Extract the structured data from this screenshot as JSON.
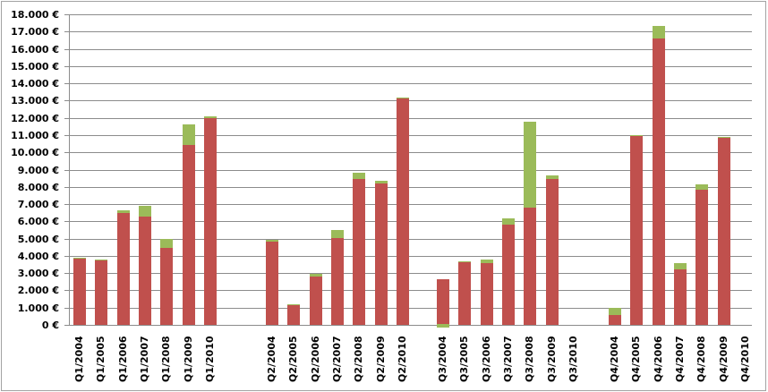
{
  "chart_data": {
    "type": "bar",
    "stacked": true,
    "title": "",
    "legend": "none",
    "grid": true,
    "currency_suffix": " €",
    "y_axis": {
      "min": 0,
      "max": 18000,
      "step": 1000,
      "tick_labels": [
        "0 €",
        "1.000 €",
        "2.000 €",
        "3.000 €",
        "4.000 €",
        "5.000 €",
        "6.000 €",
        "7.000 €",
        "8.000 €",
        "9.000 €",
        "10.000 €",
        "11.000 €",
        "12.000 €",
        "13.000 €",
        "14.000 €",
        "15.000 €",
        "16.000 €",
        "17.000 €",
        "18.000 €"
      ]
    },
    "categories": [
      "Q1/2004",
      "Q1/2005",
      "Q1/2006",
      "Q1/2007",
      "Q1/2008",
      "Q1/2009",
      "Q1/2010",
      "Q2/2004",
      "Q2/2005",
      "Q2/2006",
      "Q2/2007",
      "Q2/2008",
      "Q2/2009",
      "Q2/2010",
      "Q3/2004",
      "Q3/2005",
      "Q3/2006",
      "Q3/2007",
      "Q3/2008",
      "Q3/2009",
      "Q3/2010",
      "Q4/2004",
      "Q4/2005",
      "Q4/2006",
      "Q4/2007",
      "Q4/2008",
      "Q4/2009",
      "Q4/2010"
    ],
    "series": [
      {
        "name": "red-series",
        "color": "#C0504D",
        "values": [
          3850,
          3750,
          6500,
          6300,
          4450,
          10450,
          12000,
          4800,
          1150,
          2800,
          5050,
          8450,
          8200,
          13100,
          2650,
          3650,
          3600,
          5800,
          6800,
          8450,
          0,
          550,
          10950,
          16600,
          3200,
          7850,
          10850,
          0
        ]
      },
      {
        "name": "green-series",
        "color": "#9BBB59",
        "values": [
          50,
          50,
          150,
          600,
          550,
          1150,
          100,
          150,
          50,
          150,
          450,
          350,
          150,
          100,
          0,
          50,
          200,
          350,
          4950,
          200,
          0,
          450,
          50,
          700,
          400,
          300,
          50,
          0
        ]
      }
    ],
    "anomaly_green_at_base": {
      "category": "Q3/2004",
      "value": 150
    }
  },
  "colors": {
    "red": "#C0504D",
    "green": "#9BBB59",
    "gridline": "#8C8C8C",
    "axis": "#8C8C8C",
    "frame_border": "#A3A3A3",
    "label_text": "#000000"
  }
}
